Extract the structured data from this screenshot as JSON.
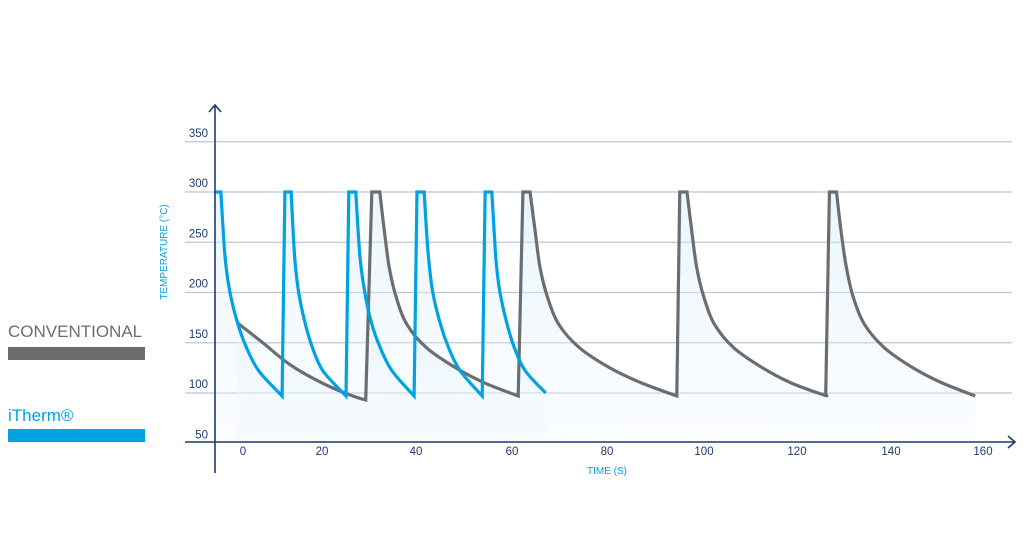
{
  "chart_data": {
    "type": "line",
    "title": "",
    "xlabel": "TIME (S)",
    "ylabel": "TEMPERATURE (°C)",
    "xlim": [
      -7,
      165
    ],
    "ylim": [
      50,
      370
    ],
    "x_ticks": [
      0,
      20,
      40,
      60,
      80,
      100,
      120,
      140,
      160
    ],
    "y_ticks": [
      50,
      100,
      150,
      200,
      250,
      300,
      350
    ],
    "grid": true,
    "legend_placement": "left",
    "series": [
      {
        "name": "CONVENTIONAL",
        "color": "#6b6e70",
        "cycles": [
          {
            "decay": [
              [
                -1.5,
                170
              ],
              [
                5,
                150
              ],
              [
                12,
                128
              ],
              [
                20,
                110
              ],
              [
                26,
                98
              ],
              [
                29.3,
                93
              ]
            ]
          },
          {
            "top_start": [
              30.6,
              300
            ],
            "decay": [
              [
                32.3,
                300
              ],
              [
                33.3,
                260
              ],
              [
                34.3,
                225
              ],
              [
                35.8,
                195
              ],
              [
                38.1,
                168
              ],
              [
                42.2,
                145
              ],
              [
                48.3,
                125
              ],
              [
                54.3,
                110
              ],
              [
                61.3,
                97
              ]
            ]
          },
          {
            "top_start": [
              62.3,
              300
            ],
            "decay": [
              [
                63.8,
                300
              ],
              [
                64.9,
                260
              ],
              [
                65.9,
                225
              ],
              [
                67.5,
                195
              ],
              [
                69.9,
                168
              ],
              [
                74.2,
                145
              ],
              [
                80.6,
                125
              ],
              [
                87.1,
                110
              ],
              [
                94.4,
                97
              ]
            ]
          },
          {
            "top_start": [
              95.0,
              300
            ],
            "decay": [
              [
                96.5,
                300
              ],
              [
                97.5,
                260
              ],
              [
                98.5,
                225
              ],
              [
                100.0,
                195
              ],
              [
                102.3,
                168
              ],
              [
                106.4,
                145
              ],
              [
                112.6,
                125
              ],
              [
                118.7,
                110
              ],
              [
                125.7,
                98
              ],
              [
                126.1,
                98
              ]
            ]
          },
          {
            "top_start": [
              126.9,
              300
            ],
            "decay": [
              [
                128.4,
                300
              ],
              [
                129.4,
                260
              ],
              [
                130.5,
                225
              ],
              [
                132.0,
                195
              ],
              [
                134.4,
                168
              ],
              [
                138.6,
                145
              ],
              [
                144.8,
                125
              ],
              [
                151.1,
                110
              ],
              [
                158.3,
                97
              ]
            ]
          }
        ]
      },
      {
        "name": "iTherm®",
        "color": "#00a3e0",
        "cycles": [
          {
            "top_start": [
              -7.1,
              300
            ],
            "decay": [
              [
                -5.6,
                300
              ],
              [
                -5.0,
                260
              ],
              [
                -4.4,
                230
              ],
              [
                -3.3,
                200
              ],
              [
                -1.4,
                170
              ],
              [
                0.9,
                145
              ],
              [
                4.0,
                122
              ],
              [
                9.9,
                97
              ]
            ]
          },
          {
            "top_start": [
              10.6,
              300
            ],
            "decay": [
              [
                12.2,
                300
              ],
              [
                12.7,
                260
              ],
              [
                13.2,
                230
              ],
              [
                14.1,
                200
              ],
              [
                15.7,
                170
              ],
              [
                17.6,
                145
              ],
              [
                20.2,
                122
              ],
              [
                25.1,
                97
              ]
            ]
          },
          {
            "top_start": [
              25.7,
              300
            ],
            "decay": [
              [
                27.2,
                300
              ],
              [
                27.7,
                260
              ],
              [
                28.2,
                230
              ],
              [
                29.1,
                200
              ],
              [
                30.5,
                170
              ],
              [
                32.4,
                145
              ],
              [
                34.9,
                122
              ],
              [
                39.6,
                97
              ]
            ]
          },
          {
            "top_start": [
              40.2,
              300
            ],
            "decay": [
              [
                41.7,
                300
              ],
              [
                42.2,
                260
              ],
              [
                42.7,
                230
              ],
              [
                43.5,
                200
              ],
              [
                45.0,
                170
              ],
              [
                46.8,
                145
              ],
              [
                49.2,
                122
              ],
              [
                53.8,
                97
              ]
            ]
          },
          {
            "top_start": [
              54.4,
              300
            ],
            "decay": [
              [
                55.8,
                300
              ],
              [
                56.3,
                260
              ],
              [
                56.7,
                230
              ],
              [
                57.5,
                200
              ],
              [
                58.9,
                170
              ],
              [
                60.5,
                145
              ],
              [
                62.8,
                122
              ],
              [
                67.1,
                100
              ]
            ]
          }
        ]
      }
    ],
    "fill_color": "#dff0fb",
    "axis_color": "#1f3a6e",
    "grid_color": "#b9c6d8"
  },
  "legend": {
    "items": [
      {
        "label": "CONVENTIONAL",
        "color": "#6b6e70"
      },
      {
        "label": "iTherm®",
        "color": "#00a3e0"
      }
    ]
  }
}
